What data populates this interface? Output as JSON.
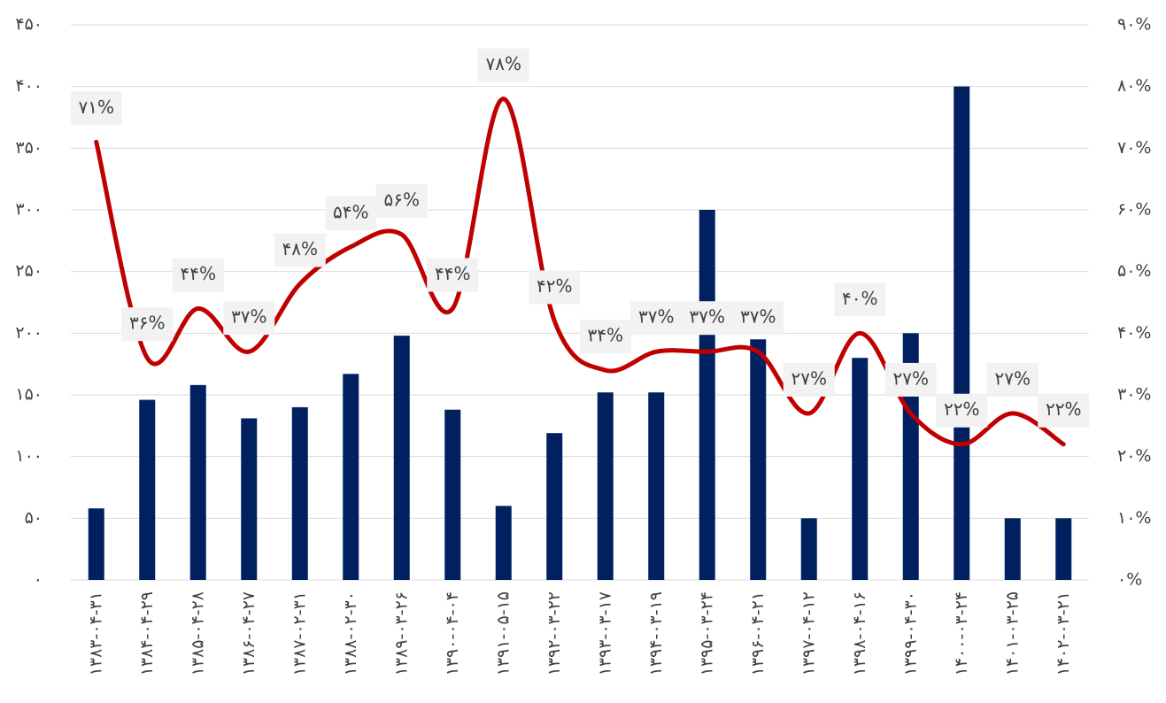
{
  "chart_data": {
    "type": "bar",
    "categories": [
      "۱۳۸۳-۰۴-۳۱",
      "۱۳۸۴-۰۴-۲۹",
      "۱۳۸۵-۰۴-۲۸",
      "۱۳۸۶-۰۴-۲۷",
      "۱۳۸۷-۰۲-۳۱",
      "۱۳۸۸-۰۲-۳۰",
      "۱۳۸۹-۰۳-۲۶",
      "۱۳۹۰-۰۴-۰۴",
      "۱۳۹۱-۰۵-۱۵",
      "۱۳۹۲-۰۳-۲۲",
      "۱۳۹۳-۰۳-۱۷",
      "۱۳۹۴-۰۳-۱۹",
      "۱۳۹۵-۰۳-۲۴",
      "۱۳۹۶-۰۴-۲۱",
      "۱۳۹۷-۰۴-۱۲",
      "۱۳۹۸-۰۴-۱۶",
      "۱۳۹۹-۰۴-۳۰",
      "۱۴۰۰-۰۳-۲۴",
      "۱۴۰۱-۰۳-۲۵",
      "۱۴۰۲-۰۳-۲۱"
    ],
    "series": [
      {
        "type": "bar",
        "color": "#002060",
        "values": [
          58,
          146,
          158,
          131,
          140,
          167,
          198,
          138,
          60,
          119,
          152,
          152,
          300,
          195,
          50,
          180,
          200,
          400,
          50,
          50
        ]
      },
      {
        "type": "line",
        "axis": "y2",
        "color": "#c00000",
        "values": [
          71,
          36,
          44,
          37,
          48,
          54,
          56,
          44,
          78,
          42,
          34,
          37,
          37,
          37,
          27,
          40,
          27,
          22,
          27,
          22
        ],
        "value_labels": [
          "۷۱%",
          "۳۶%",
          "۴۴%",
          "۳۷%",
          "۴۸%",
          "۵۴%",
          "۵۶%",
          "۴۴%",
          "۷۸%",
          "۴۲%",
          "۳۴%",
          "۳۷%",
          "۳۷%",
          "۳۷%",
          "۲۷%",
          "۴۰%",
          "۲۷%",
          "۲۲%",
          "۲۷%",
          "۲۲%"
        ]
      }
    ],
    "ylim": [
      0,
      450
    ],
    "yticks": [
      {
        "value": 0,
        "label": "۰"
      },
      {
        "value": 50,
        "label": "۵۰"
      },
      {
        "value": 100,
        "label": "۱۰۰"
      },
      {
        "value": 150,
        "label": "۱۵۰"
      },
      {
        "value": 200,
        "label": "۲۰۰"
      },
      {
        "value": 250,
        "label": "۲۵۰"
      },
      {
        "value": 300,
        "label": "۳۰۰"
      },
      {
        "value": 350,
        "label": "۳۵۰"
      },
      {
        "value": 400,
        "label": "۴۰۰"
      },
      {
        "value": 450,
        "label": "۴۵۰"
      }
    ],
    "y2lim": [
      0,
      90
    ],
    "y2ticks": [
      {
        "value": 0,
        "label": "۰%"
      },
      {
        "value": 10,
        "label": "۱۰%"
      },
      {
        "value": 20,
        "label": "۲۰%"
      },
      {
        "value": 30,
        "label": "۳۰%"
      },
      {
        "value": 40,
        "label": "۴۰%"
      },
      {
        "value": 50,
        "label": "۵۰%"
      },
      {
        "value": 60,
        "label": "۶۰%"
      },
      {
        "value": 70,
        "label": "۷۰%"
      },
      {
        "value": 80,
        "label": "۸۰%"
      },
      {
        "value": 90,
        "label": "۹۰%"
      }
    ],
    "grid": true
  }
}
